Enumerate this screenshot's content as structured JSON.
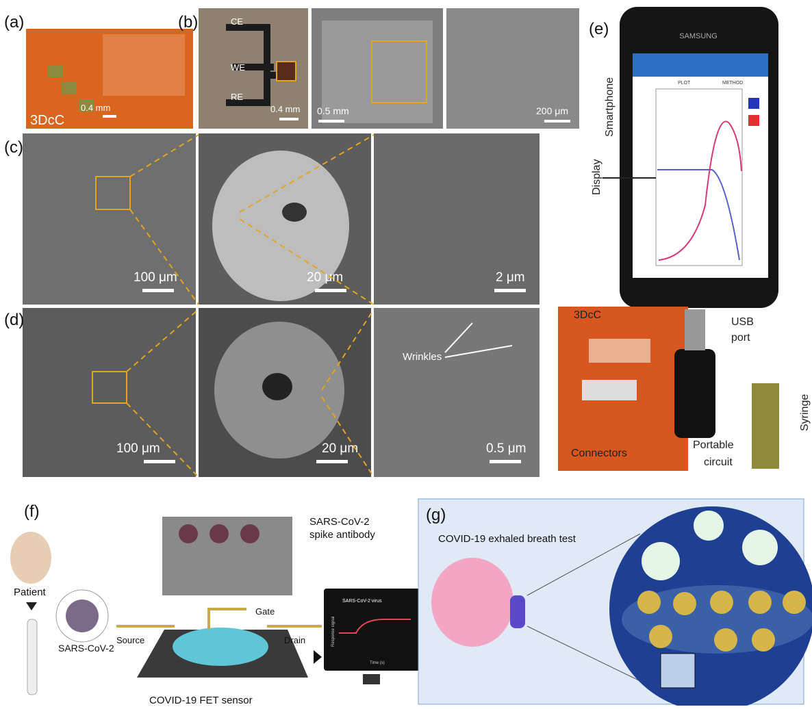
{
  "panels": {
    "a": {
      "label": "(a)",
      "name": "3DcC",
      "scale": "0.4 mm"
    },
    "b": {
      "label": "(b)",
      "electrodes": [
        "CE",
        "WE",
        "RE"
      ],
      "scales": [
        "0.4 mm",
        "0.5 mm",
        "200 μm"
      ]
    },
    "c": {
      "label": "(c)",
      "scales": [
        "100 μm",
        "20 μm",
        "2 μm"
      ]
    },
    "d": {
      "label": "(d)",
      "scales": [
        "100 μm",
        "20 μm",
        "0.5 μm"
      ],
      "annotation": "Wrinkles"
    },
    "e": {
      "label": "(e)",
      "brand": "SAMSUNG",
      "tabs": [
        "PLOT",
        "METHOD"
      ],
      "annotations": {
        "smartphone": "Smartphone",
        "display": "Display",
        "chip": "3DcC",
        "usb": [
          "USB",
          "port"
        ],
        "connectors": "Connectors",
        "circuit": [
          "Portable",
          "circuit"
        ],
        "syringe": "Syringe"
      }
    },
    "f": {
      "label": "(f)",
      "patient": "Patient",
      "virus": "SARS-CoV-2",
      "antibody": [
        "SARS-CoV-2",
        "spike antibody"
      ],
      "gate": "Gate",
      "source": "Source",
      "drain": "Drain",
      "sensor": "COVID-19 FET sensor",
      "monitor": {
        "title": "SARS-CoV-2 virus",
        "x_label": "Time (s)",
        "y_label": "Response signal"
      }
    },
    "g": {
      "label": "(g)",
      "title": "COVID-19 exhaled breath test"
    }
  }
}
